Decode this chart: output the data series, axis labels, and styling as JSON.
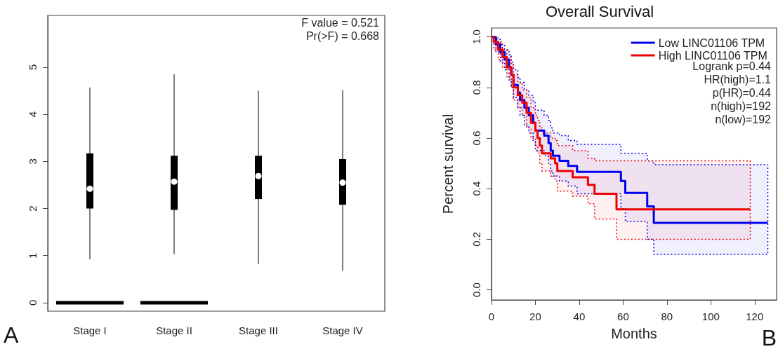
{
  "chart_data": [
    {
      "type": "box",
      "categories": [
        "Stage I",
        "Stage II",
        "Stage III",
        "Stage IV"
      ],
      "ylim": [
        -0.18,
        6.1
      ],
      "yticks": [
        0,
        1,
        2,
        3,
        4,
        5
      ],
      "grid": false,
      "annotations": [
        "F value = 0.521",
        "Pr(>F) = 0.668",
        "A"
      ],
      "series": [
        {
          "color": "#000000",
          "boxes": [
            {
              "low": 0.92,
              "q1": 2.0,
              "median": 2.42,
              "q3": 3.17,
              "high": 4.57
            },
            {
              "low": 1.03,
              "q1": 1.97,
              "median": 2.57,
              "q3": 3.12,
              "high": 4.85
            },
            {
              "low": 0.82,
              "q1": 2.2,
              "median": 2.69,
              "q3": 3.12,
              "high": 4.5
            },
            {
              "low": 0.68,
              "q1": 2.08,
              "median": 2.55,
              "q3": 3.05,
              "high": 4.51
            }
          ]
        },
        {
          "color": "#000000",
          "boxes": [
            {
              "low": 0,
              "q1": 0,
              "median": 0,
              "q3": 0,
              "high": 0
            },
            {
              "low": 0,
              "q1": 0,
              "median": 0,
              "q3": 0,
              "high": 0
            },
            null,
            null
          ]
        }
      ]
    },
    {
      "type": "step",
      "title": "Overall Survival",
      "xlabel": "Months",
      "ylabel": "Percent survival",
      "xlim": [
        0,
        130
      ],
      "xticks": [
        0,
        20,
        40,
        60,
        80,
        100,
        120
      ],
      "ylim": [
        -0.04,
        1.035
      ],
      "yticks": [
        {
          "value": 0,
          "label": "0.0"
        },
        {
          "value": 0.2,
          "label": "0.2"
        },
        {
          "value": 0.4,
          "label": "0.4"
        },
        {
          "value": 0.6,
          "label": "0.6"
        },
        {
          "value": 0.8,
          "label": "0.8"
        },
        {
          "value": 1,
          "label": "1.0"
        }
      ],
      "grid": false,
      "legend": "top right",
      "annotations": [
        "Logrank p=0.44",
        "HR(high)=1.1",
        "p(HR)=0.44",
        "n(high)=192",
        "n(low)=192",
        "B"
      ],
      "series": [
        {
          "name": "Low LINC01106 TPM",
          "color": "#0000ee",
          "x": [
            0,
            2,
            4,
            6,
            8,
            9,
            10,
            12,
            13,
            15,
            17,
            19,
            20,
            24,
            26,
            27,
            28,
            31,
            35,
            39,
            59,
            61,
            71,
            74,
            126
          ],
          "values": [
            1.0,
            0.97,
            0.94,
            0.91,
            0.88,
            0.85,
            0.81,
            0.78,
            0.75,
            0.72,
            0.69,
            0.66,
            0.63,
            0.61,
            0.58,
            0.55,
            0.53,
            0.51,
            0.49,
            0.466,
            0.43,
            0.383,
            0.33,
            0.265,
            0.265
          ],
          "upper": [
            1.0,
            0.99,
            0.97,
            0.95,
            0.93,
            0.9,
            0.87,
            0.84,
            0.82,
            0.79,
            0.77,
            0.74,
            0.71,
            0.69,
            0.67,
            0.64,
            0.62,
            0.61,
            0.59,
            0.575,
            0.54,
            0.54,
            0.51,
            0.495,
            0.495
          ],
          "lower": [
            1.0,
            0.94,
            0.9,
            0.87,
            0.83,
            0.8,
            0.76,
            0.72,
            0.69,
            0.65,
            0.62,
            0.59,
            0.55,
            0.53,
            0.5,
            0.47,
            0.45,
            0.43,
            0.41,
            0.38,
            0.32,
            0.27,
            0.2,
            0.14,
            0.14
          ]
        },
        {
          "name": "High LINC01106 TPM",
          "color": "#ee0000",
          "x": [
            0,
            1,
            3,
            5,
            7,
            9,
            10,
            12,
            14,
            16,
            18,
            20,
            21,
            22,
            23,
            27,
            29,
            30,
            37,
            44,
            47,
            57,
            118
          ],
          "values": [
            1.0,
            0.98,
            0.95,
            0.92,
            0.88,
            0.85,
            0.8,
            0.77,
            0.74,
            0.7,
            0.66,
            0.63,
            0.6,
            0.57,
            0.54,
            0.52,
            0.5,
            0.47,
            0.445,
            0.415,
            0.38,
            0.318,
            0.318
          ],
          "upper": [
            1.0,
            1.0,
            0.98,
            0.95,
            0.92,
            0.89,
            0.85,
            0.82,
            0.79,
            0.76,
            0.72,
            0.69,
            0.67,
            0.64,
            0.62,
            0.6,
            0.59,
            0.57,
            0.55,
            0.52,
            0.51,
            0.51,
            0.51
          ],
          "lower": [
            1.0,
            0.95,
            0.91,
            0.88,
            0.84,
            0.8,
            0.75,
            0.72,
            0.69,
            0.64,
            0.6,
            0.57,
            0.54,
            0.5,
            0.47,
            0.45,
            0.43,
            0.39,
            0.37,
            0.34,
            0.28,
            0.2,
            0.2
          ]
        }
      ]
    }
  ]
}
